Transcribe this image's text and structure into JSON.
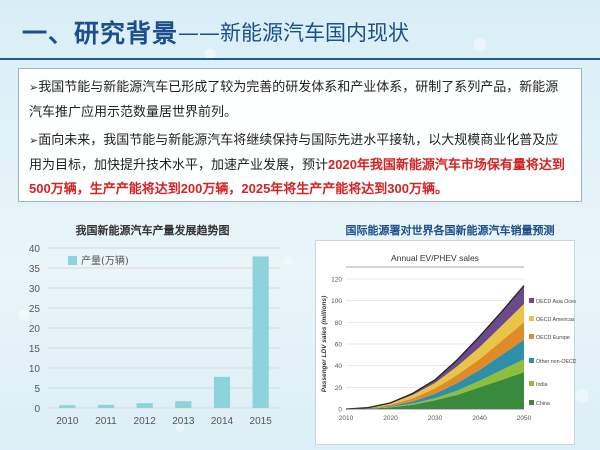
{
  "header": {
    "title_main": "一、研究背景",
    "title_sub": "——新能源汽车国内现状"
  },
  "body": {
    "para1": "我国节能与新能源汽车已形成了较为完善的研发体系和产业体系，研制了系列产品，新能源汽车推广应用示范数量居世界前列。",
    "para2_normal": "面向未来，我国节能与新能源汽车将继续保持与国际先进水平接轨，以大规模商业化普及应用为目标，加快提升技术水平，加速产业发展，预计",
    "para2_highlight": "2020年我国新能源汽车市场保有量将达到500万辆，生产产能将达到200万辆，2025年将生产产能将达到300万辆。"
  },
  "colors": {
    "title": "#1f4e8c",
    "highlight": "#d32424",
    "bar_left": "#8ed3da"
  },
  "chart_data": [
    {
      "type": "bar",
      "title": "我国新能源汽车产量发展趋势图",
      "categories": [
        "2010",
        "2011",
        "2012",
        "2013",
        "2014",
        "2015"
      ],
      "series": [
        {
          "name": "产量(万辆)",
          "values": [
            0.7,
            0.8,
            1.2,
            1.7,
            7.8,
            37.9
          ]
        }
      ],
      "ylim": [
        0,
        40
      ],
      "yticks": [
        0,
        5,
        10,
        15,
        20,
        25,
        30,
        35,
        40
      ],
      "grid": true,
      "legend": "top-left"
    },
    {
      "type": "area",
      "title": "国际能源署对世界各国新能源汽车销量预测",
      "subtitle": "Annual EV/PHEV sales",
      "ylabel": "Passenger LDV sales (millions)",
      "x": [
        2010,
        2015,
        2020,
        2025,
        2030,
        2035,
        2040,
        2045,
        2050
      ],
      "xticks": [
        2010,
        2020,
        2030,
        2040,
        2050
      ],
      "yticks": [
        0,
        20,
        40,
        60,
        80,
        100,
        120
      ],
      "ylim": [
        0,
        120
      ],
      "legend": "right",
      "series": [
        {
          "name": "China",
          "color": "#3a8a3e",
          "values": [
            0,
            0.3,
            1.5,
            4,
            8,
            13,
            20,
            27,
            34
          ]
        },
        {
          "name": "India",
          "color": "#8fbf3a",
          "values": [
            0,
            0.1,
            0.4,
            1,
            2,
            4,
            6,
            9,
            12
          ]
        },
        {
          "name": "Other non-OECD",
          "color": "#2f8fa8",
          "values": [
            0,
            0.2,
            0.8,
            2,
            4,
            7,
            10,
            14,
            18
          ]
        },
        {
          "name": "OECD Europe",
          "color": "#e08a2c",
          "values": [
            0,
            0.3,
            1.2,
            3,
            5,
            7.5,
            10,
            13,
            16
          ]
        },
        {
          "name": "OECD Americas",
          "color": "#e8c547",
          "values": [
            0,
            0.3,
            1.2,
            3,
            5,
            8,
            11,
            14,
            17
          ]
        },
        {
          "name": "OECD Asia Oceania",
          "color": "#6b4a8c",
          "values": [
            0,
            0.1,
            0.5,
            1.5,
            3,
            6,
            10,
            13,
            17
          ]
        }
      ]
    }
  ]
}
